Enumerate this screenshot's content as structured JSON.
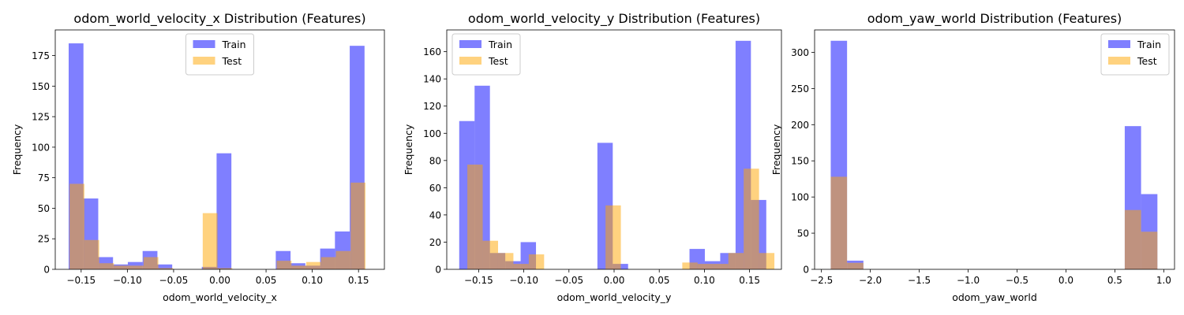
{
  "chart_data": [
    {
      "type": "bar",
      "title": "odom_world_velocity_x Distribution (Features)",
      "xlabel": "odom_world_velocity_x",
      "ylabel": "Frequency",
      "xlim": [
        -0.178,
        0.178
      ],
      "ylim": [
        0,
        196
      ],
      "xticks": [
        -0.15,
        -0.1,
        -0.05,
        0.0,
        0.05,
        0.1,
        0.15
      ],
      "xtick_labels": [
        "−0.15",
        "−0.10",
        "−0.05",
        "0.00",
        "0.05",
        "0.10",
        "0.15"
      ],
      "yticks": [
        0,
        25,
        50,
        75,
        100,
        125,
        150,
        175
      ],
      "ytick_labels": [
        "0",
        "25",
        "50",
        "75",
        "100",
        "125",
        "150",
        "175"
      ],
      "legend_position": "top-center",
      "series": [
        {
          "name": "Train",
          "color": "#0000ff",
          "opacity": 0.5,
          "bins": [
            [
              -0.1635,
              -0.1475,
              185
            ],
            [
              -0.1475,
              -0.1315,
              58
            ],
            [
              -0.1315,
              -0.1155,
              10
            ],
            [
              -0.1155,
              -0.0995,
              4
            ],
            [
              -0.0995,
              -0.0835,
              6
            ],
            [
              -0.0835,
              -0.0675,
              15
            ],
            [
              -0.0675,
              -0.0515,
              4
            ],
            [
              -0.0515,
              -0.0355,
              0
            ],
            [
              -0.0355,
              -0.0195,
              0
            ],
            [
              -0.0195,
              -0.0035,
              2
            ],
            [
              -0.0035,
              0.0125,
              95
            ],
            [
              0.0125,
              0.0285,
              0
            ],
            [
              0.0285,
              0.0445,
              0
            ],
            [
              0.0445,
              0.0605,
              0
            ],
            [
              0.0605,
              0.0765,
              15
            ],
            [
              0.0765,
              0.0925,
              5
            ],
            [
              0.0925,
              0.1085,
              3
            ],
            [
              0.1085,
              0.1245,
              17
            ],
            [
              0.1245,
              0.1405,
              31
            ],
            [
              0.1405,
              0.1565,
              183
            ]
          ]
        },
        {
          "name": "Test",
          "color": "#ffa500",
          "opacity": 0.5,
          "bins": [
            [
              -0.1625,
              -0.1465,
              70
            ],
            [
              -0.1465,
              -0.1305,
              24
            ],
            [
              -0.1305,
              -0.1145,
              5
            ],
            [
              -0.1145,
              -0.0985,
              3
            ],
            [
              -0.0985,
              -0.0825,
              3
            ],
            [
              -0.0825,
              -0.0665,
              10
            ],
            [
              -0.0665,
              -0.0505,
              1
            ],
            [
              -0.0505,
              -0.0345,
              0
            ],
            [
              -0.0345,
              -0.0185,
              0
            ],
            [
              -0.0185,
              -0.0025,
              46
            ],
            [
              -0.0025,
              0.0135,
              1
            ],
            [
              0.0135,
              0.0295,
              0
            ],
            [
              0.0295,
              0.0455,
              0
            ],
            [
              0.0455,
              0.0615,
              0
            ],
            [
              0.0615,
              0.0775,
              7
            ],
            [
              0.0775,
              0.0935,
              3
            ],
            [
              0.0935,
              0.1095,
              6
            ],
            [
              0.1095,
              0.1255,
              10
            ],
            [
              0.1255,
              0.1415,
              15
            ],
            [
              0.1415,
              0.1575,
              71
            ]
          ]
        }
      ]
    },
    {
      "type": "bar",
      "title": "odom_world_velocity_y Distribution (Features)",
      "xlabel": "odom_world_velocity_y",
      "ylabel": "Frequency",
      "xlim": [
        -0.1853,
        0.1853
      ],
      "ylim": [
        0,
        176
      ],
      "xticks": [
        -0.15,
        -0.1,
        -0.05,
        0.0,
        0.05,
        0.1,
        0.15
      ],
      "xtick_labels": [
        "−0.15",
        "−0.10",
        "−0.05",
        "0.00",
        "0.05",
        "0.10",
        "0.15"
      ],
      "yticks": [
        0,
        20,
        40,
        60,
        80,
        100,
        120,
        140,
        160
      ],
      "ytick_labels": [
        "0",
        "20",
        "40",
        "60",
        "80",
        "100",
        "120",
        "140",
        "160"
      ],
      "legend_position": "top-left",
      "series": [
        {
          "name": "Train",
          "color": "#0000ff",
          "opacity": 0.5,
          "bins": [
            [
              -0.1715,
              -0.1545,
              109
            ],
            [
              -0.1545,
              -0.1375,
              135
            ],
            [
              -0.1375,
              -0.1205,
              12
            ],
            [
              -0.1205,
              -0.1035,
              6
            ],
            [
              -0.1035,
              -0.0865,
              20
            ],
            [
              -0.0865,
              -0.0695,
              0
            ],
            [
              -0.0695,
              -0.0525,
              0
            ],
            [
              -0.0525,
              -0.0355,
              0
            ],
            [
              -0.0355,
              -0.0185,
              0
            ],
            [
              -0.0185,
              -0.0015,
              93
            ],
            [
              -0.0015,
              0.0155,
              4
            ],
            [
              0.0155,
              0.0325,
              0
            ],
            [
              0.0325,
              0.0495,
              0
            ],
            [
              0.0495,
              0.0665,
              0
            ],
            [
              0.0665,
              0.0835,
              0
            ],
            [
              0.0835,
              0.1005,
              15
            ],
            [
              0.1005,
              0.1175,
              6
            ],
            [
              0.1175,
              0.1345,
              12
            ],
            [
              0.1345,
              0.1515,
              168
            ],
            [
              0.1515,
              0.1685,
              51
            ]
          ]
        },
        {
          "name": "Test",
          "color": "#ffa500",
          "opacity": 0.5,
          "bins": [
            [
              -0.1625,
              -0.1455,
              77
            ],
            [
              -0.1455,
              -0.1285,
              21
            ],
            [
              -0.1285,
              -0.1115,
              12
            ],
            [
              -0.1115,
              -0.0945,
              4
            ],
            [
              -0.0945,
              -0.0775,
              11
            ],
            [
              -0.0775,
              -0.0605,
              0
            ],
            [
              -0.0605,
              -0.0435,
              0
            ],
            [
              -0.0435,
              -0.0265,
              0
            ],
            [
              -0.0265,
              -0.0095,
              0
            ],
            [
              -0.0095,
              0.0075,
              47
            ],
            [
              0.0075,
              0.0245,
              0
            ],
            [
              0.0245,
              0.0415,
              0
            ],
            [
              0.0415,
              0.0585,
              0
            ],
            [
              0.0585,
              0.0755,
              0
            ],
            [
              0.0755,
              0.0925,
              5
            ],
            [
              0.0925,
              0.1095,
              4
            ],
            [
              0.1095,
              0.1265,
              4
            ],
            [
              0.1265,
              0.1435,
              12
            ],
            [
              0.1435,
              0.1605,
              74
            ],
            [
              0.1605,
              0.1775,
              12
            ]
          ]
        }
      ]
    },
    {
      "type": "bar",
      "title": "odom_yaw_world Distribution (Features)",
      "xlabel": "odom_yaw_world",
      "ylabel": "Frequency",
      "xlim": [
        -2.57,
        1.11
      ],
      "ylim": [
        0,
        331
      ],
      "xticks": [
        -2.5,
        -2.0,
        -1.5,
        -1.0,
        -0.5,
        0.0,
        0.5,
        1.0
      ],
      "xtick_labels": [
        "−2.5",
        "−2.0",
        "−1.5",
        "−1.0",
        "−0.5",
        "0.0",
        "0.5",
        "1.0"
      ],
      "yticks": [
        0,
        50,
        100,
        150,
        200,
        250,
        300
      ],
      "ytick_labels": [
        "0",
        "50",
        "100",
        "150",
        "200",
        "250",
        "300"
      ],
      "legend_position": "top-right",
      "series": [
        {
          "name": "Train",
          "color": "#0000ff",
          "opacity": 0.5,
          "bins": [
            [
              -2.405,
              -2.238,
              316
            ],
            [
              -2.238,
              -2.071,
              12
            ],
            [
              -2.071,
              -1.904,
              0
            ],
            [
              -1.904,
              -1.737,
              0
            ],
            [
              -1.737,
              -1.57,
              0
            ],
            [
              -1.57,
              -1.403,
              0
            ],
            [
              -1.403,
              -1.236,
              0
            ],
            [
              -1.236,
              -1.069,
              0
            ],
            [
              -1.069,
              -0.902,
              0
            ],
            [
              -0.902,
              -0.735,
              0
            ],
            [
              -0.735,
              -0.568,
              0
            ],
            [
              -0.568,
              -0.401,
              0
            ],
            [
              -0.401,
              -0.234,
              0
            ],
            [
              -0.234,
              -0.067,
              0
            ],
            [
              -0.067,
              0.1,
              0
            ],
            [
              0.1,
              0.267,
              0
            ],
            [
              0.267,
              0.434,
              0
            ],
            [
              0.434,
              0.601,
              0
            ],
            [
              0.601,
              0.768,
              198
            ],
            [
              0.768,
              0.935,
              104
            ]
          ]
        },
        {
          "name": "Test",
          "color": "#ffa500",
          "opacity": 0.5,
          "bins": [
            [
              -2.405,
              -2.238,
              128
            ],
            [
              -2.238,
              -2.071,
              9
            ],
            [
              -2.071,
              -1.904,
              0
            ],
            [
              -1.904,
              -1.737,
              0
            ],
            [
              -1.737,
              -1.57,
              0
            ],
            [
              -1.57,
              -1.403,
              0
            ],
            [
              -1.403,
              -1.236,
              0
            ],
            [
              -1.236,
              -1.069,
              0
            ],
            [
              -1.069,
              -0.902,
              0
            ],
            [
              -0.902,
              -0.735,
              0
            ],
            [
              -0.735,
              -0.568,
              0
            ],
            [
              -0.568,
              -0.401,
              0
            ],
            [
              -0.401,
              -0.234,
              0
            ],
            [
              -0.234,
              -0.067,
              0
            ],
            [
              -0.067,
              0.1,
              0
            ],
            [
              0.1,
              0.267,
              0
            ],
            [
              0.267,
              0.434,
              0
            ],
            [
              0.434,
              0.601,
              0
            ],
            [
              0.601,
              0.768,
              82
            ],
            [
              0.768,
              0.935,
              52
            ]
          ]
        }
      ]
    }
  ]
}
